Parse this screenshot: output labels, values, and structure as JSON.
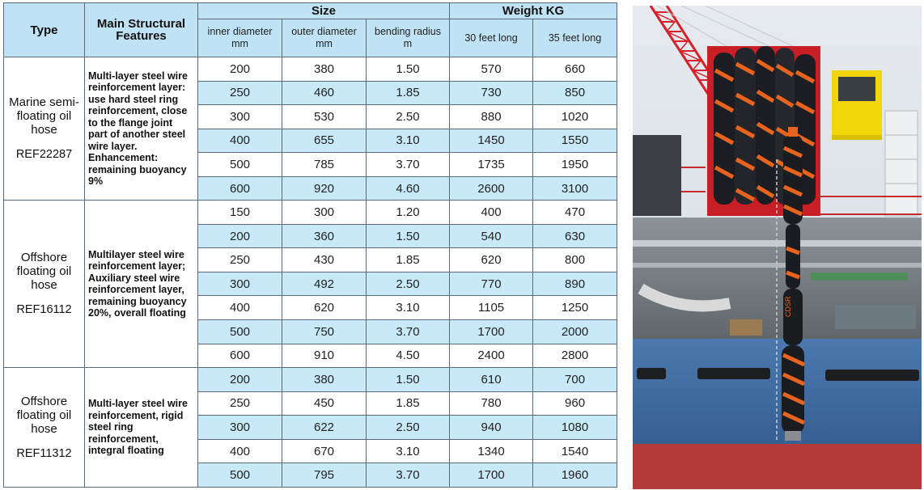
{
  "headers": {
    "type": "Type",
    "features": "Main Structural Features",
    "size": "Size",
    "weight": "Weight KG",
    "inner_diameter": "inner diameter",
    "outer_diameter": "outer diameter",
    "bending_radius": "bending radius",
    "unit_mm": "mm",
    "unit_m": "m",
    "len30": "30 feet long",
    "len35": "35 feet long"
  },
  "groups": [
    {
      "type": "Marine semi-floating oil hose",
      "ref": "REF22287",
      "features": "Multi-layer steel wire reinforcement layer: use hard steel ring reinforcement, close to the flange joint part of another steel wire layer. Enhancement: remaining buoyancy 9%",
      "rows": [
        [
          "200",
          "380",
          "1.50",
          "570",
          "660"
        ],
        [
          "250",
          "460",
          "1.85",
          "730",
          "850"
        ],
        [
          "300",
          "530",
          "2.50",
          "880",
          "1020"
        ],
        [
          "400",
          "655",
          "3.10",
          "1450",
          "1550"
        ],
        [
          "500",
          "785",
          "3.70",
          "1735",
          "1950"
        ],
        [
          "600",
          "920",
          "4.60",
          "2600",
          "3100"
        ]
      ]
    },
    {
      "type": "Offshore floating oil hose",
      "ref": "REF16112",
      "features": "Multilayer steel wire reinforcement layer; Auxiliary steel wire reinforcement layer, remaining buoyancy 20%, overall floating",
      "rows": [
        [
          "150",
          "300",
          "1.20",
          "400",
          "470"
        ],
        [
          "200",
          "360",
          "1.50",
          "540",
          "630"
        ],
        [
          "250",
          "430",
          "1.85",
          "620",
          "800"
        ],
        [
          "300",
          "492",
          "2.50",
          "770",
          "890"
        ],
        [
          "400",
          "620",
          "3.10",
          "1105",
          "1250"
        ],
        [
          "500",
          "750",
          "3.70",
          "1700",
          "2000"
        ],
        [
          "600",
          "910",
          "4.50",
          "2400",
          "2800"
        ]
      ]
    },
    {
      "type": "Offshore floating oil hose",
      "ref": "REF11312",
      "features": "Multi-layer steel wire reinforcement, rigid steel ring reinforcement, integral floating",
      "rows": [
        [
          "200",
          "380",
          "1.50",
          "610",
          "700"
        ],
        [
          "250",
          "450",
          "1.85",
          "780",
          "960"
        ],
        [
          "300",
          "622",
          "2.50",
          "940",
          "1080"
        ],
        [
          "400",
          "670",
          "3.10",
          "1340",
          "1540"
        ],
        [
          "500",
          "795",
          "3.70",
          "1700",
          "1960"
        ]
      ]
    }
  ],
  "photo": {
    "hose_text": "CDSR"
  },
  "colors": {
    "header_bg": "#bfe3f4",
    "row_alt": "#c8e9f8",
    "hose_orange": "#e8641e",
    "crane_red": "#d8202a",
    "cabin_yellow": "#f2d60c",
    "hull_blue": "#3f6fa8"
  }
}
